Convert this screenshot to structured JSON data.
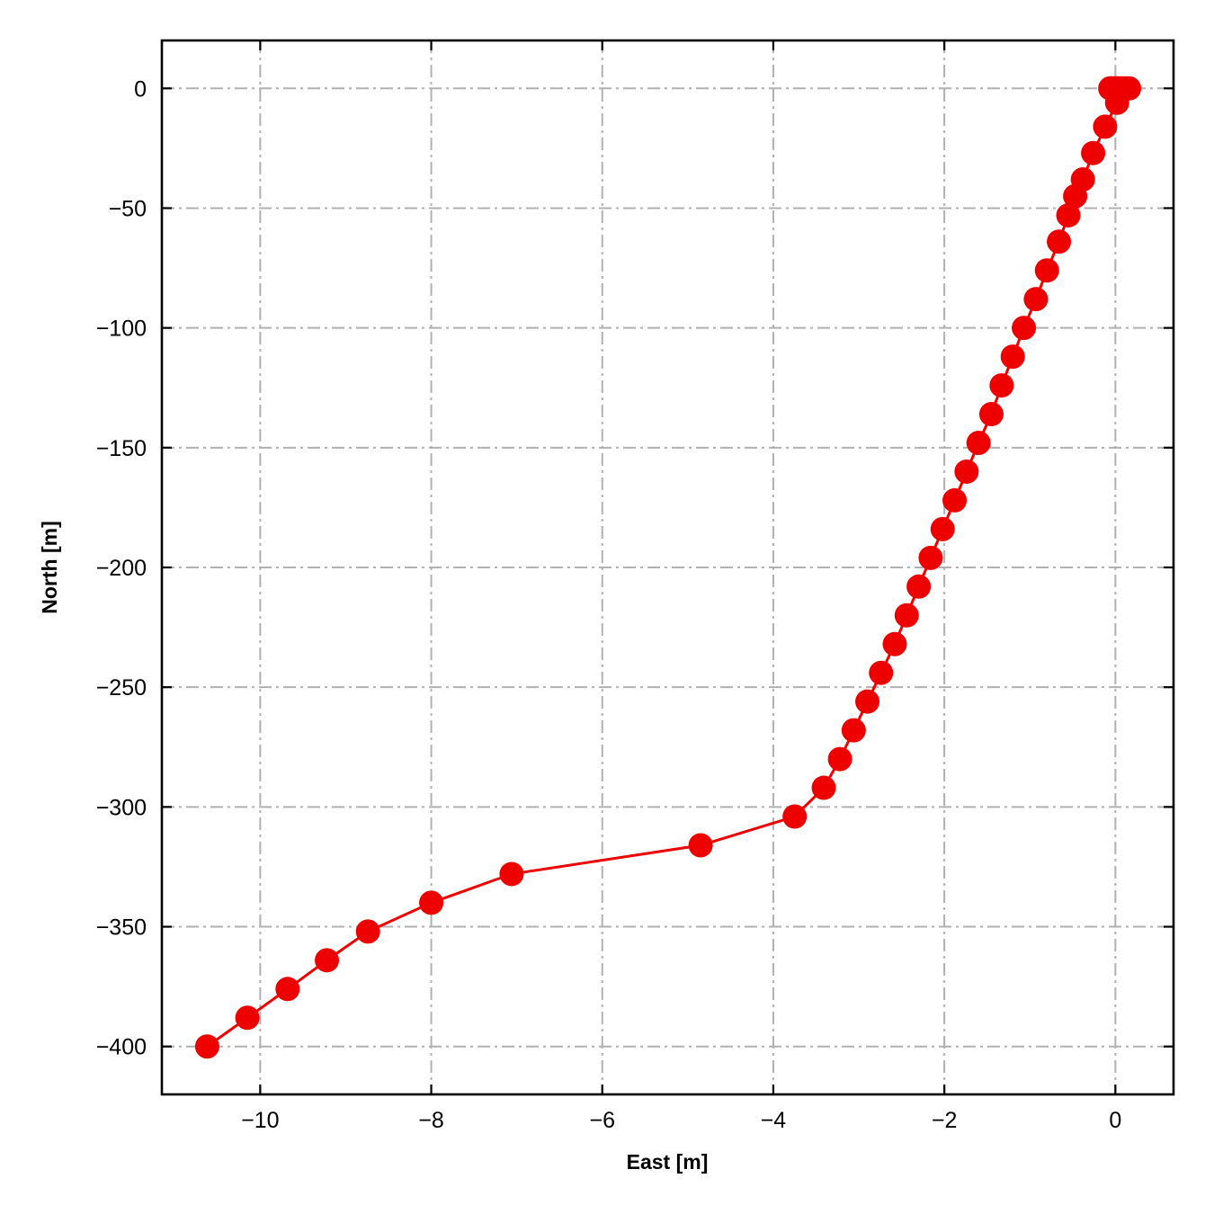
{
  "chart_data": {
    "type": "line",
    "title": "",
    "xlabel": "East [m]",
    "ylabel": "North [m]",
    "xlim": [
      -11.15,
      0.68
    ],
    "ylim": [
      -420,
      20
    ],
    "xticks": [
      -10,
      -8,
      -6,
      -4,
      -2,
      0
    ],
    "yticks": [
      0,
      -50,
      -100,
      -150,
      -200,
      -250,
      -300,
      -350,
      -400
    ],
    "xtick_labels": [
      "−10",
      "−8",
      "−6",
      "−4",
      "−2",
      "0"
    ],
    "ytick_labels": [
      "0",
      "−50",
      "−100",
      "−150",
      "−200",
      "−250",
      "−300",
      "−350",
      "−400"
    ],
    "grid": true,
    "legend": "none",
    "colors": {
      "series": "#ee0000",
      "grid": "#b0b0b0",
      "axes": "#000000"
    },
    "series": [
      {
        "marker": "circle",
        "x": [
          0.16,
          0.12,
          0.08,
          0.05,
          0.02,
          -0.01,
          -0.04,
          -0.06,
          0.02,
          -0.12,
          -0.26,
          -0.38,
          -0.47,
          -0.55,
          -0.66,
          -0.8,
          -0.93,
          -1.07,
          -1.2,
          -1.33,
          -1.45,
          -1.6,
          -1.74,
          -1.88,
          -2.02,
          -2.16,
          -2.3,
          -2.44,
          -2.58,
          -2.74,
          -2.9,
          -3.06,
          -3.22,
          -3.41,
          -3.75,
          -4.85,
          -7.06,
          -8.0,
          -8.74,
          -9.22,
          -9.68,
          -10.15,
          -10.62
        ],
        "y": [
          0,
          0,
          0,
          0,
          0,
          0,
          0,
          0,
          -6,
          -16,
          -27,
          -38,
          -45,
          -53,
          -64,
          -76,
          -88,
          -100,
          -112,
          -124,
          -136,
          -148,
          -160,
          -172,
          -184,
          -196,
          -208,
          -220,
          -232,
          -244,
          -256,
          -268,
          -280,
          -292,
          -304,
          -316,
          -328,
          -340,
          -352,
          -364,
          -376,
          -388,
          -400
        ]
      }
    ]
  }
}
